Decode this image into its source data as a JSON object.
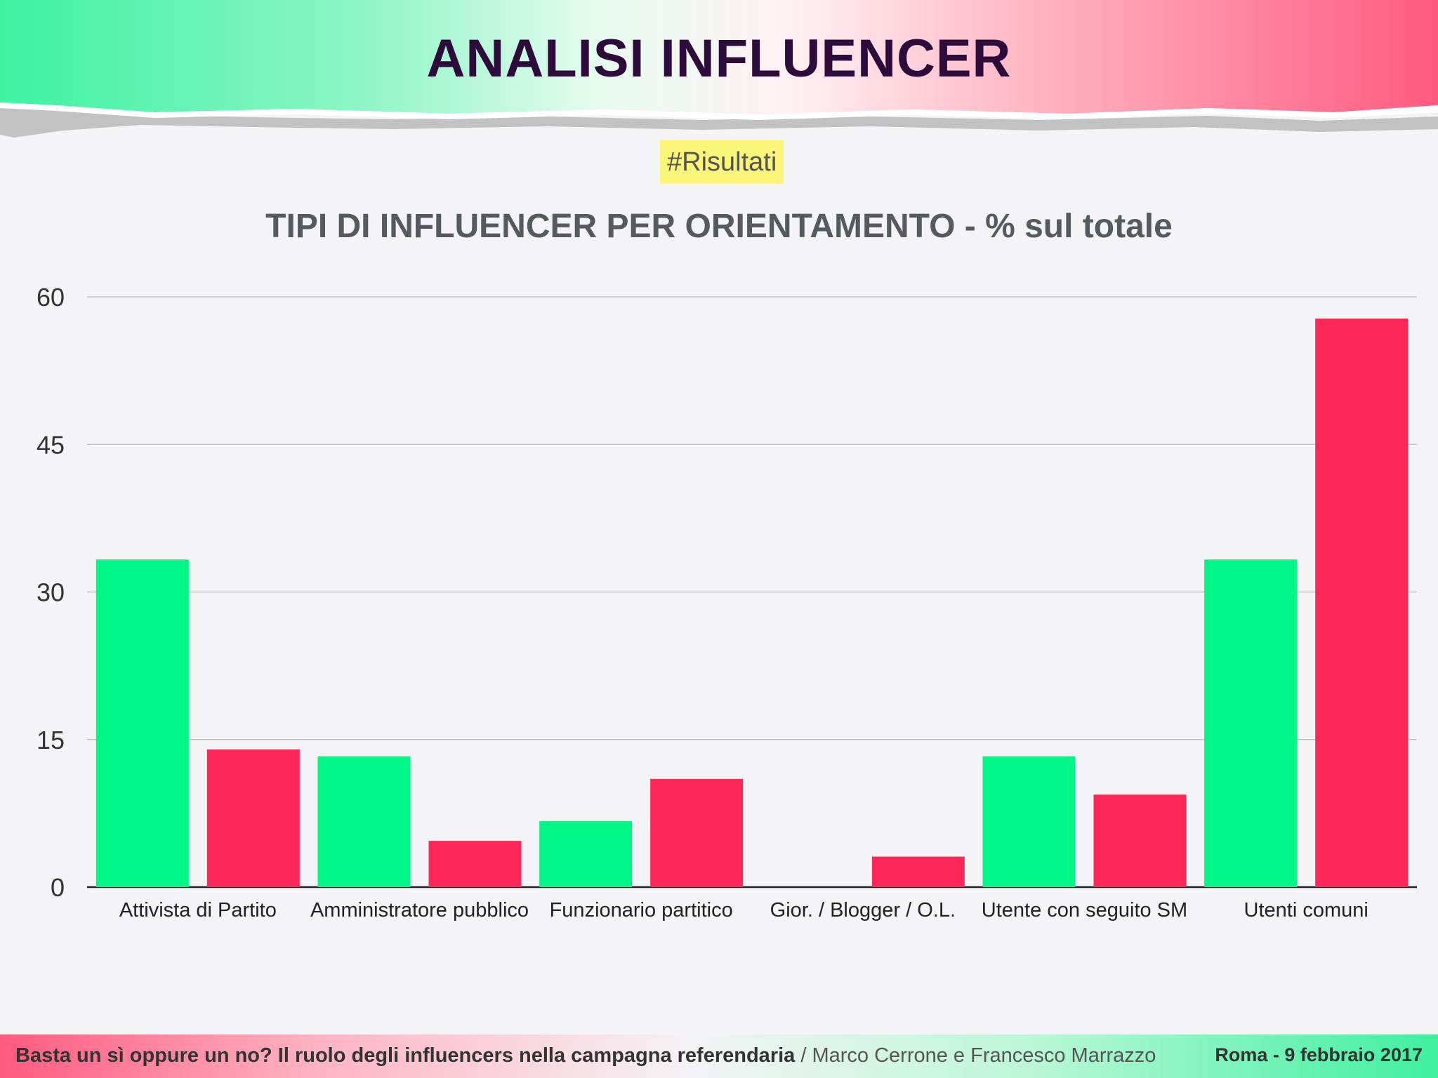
{
  "header": {
    "title": "ANALISI INFLUENCER"
  },
  "tag": "#Risultati",
  "colors": {
    "si": "#00f787",
    "no": "#ff2759",
    "header_left": "#3ef2a0",
    "header_right": "#ff5a7e"
  },
  "chart_data": {
    "type": "bar",
    "title": "TIPI DI INFLUENCER PER ORIENTAMENTO - % sul totale",
    "xlabel": "",
    "ylabel": "",
    "ylim": [
      0,
      60
    ],
    "yticks": [
      "60",
      "45",
      "30",
      "15",
      "0"
    ],
    "grid": true,
    "categories": [
      "Attivista di Partito",
      "Amministratore pubblico",
      "Funzionario partitico",
      "Gior. / Blogger / O.L.",
      "Utente con seguito SM",
      "Utenti comuni"
    ],
    "series": [
      {
        "color": "#00f787",
        "values": [
          33.3,
          13.3,
          6.7,
          0,
          13.3,
          33.3
        ]
      },
      {
        "color": "#ff2759",
        "values": [
          14,
          4.7,
          11,
          3.1,
          9.4,
          57.8
        ]
      }
    ]
  },
  "footer": {
    "title": "Basta un sì oppure un no? Il ruolo degli influencers nella campagna referendaria",
    "separator": " / ",
    "authors": "Marco Cerrone e Francesco Marrazzo",
    "place_date": "Roma - 9 febbraio 2017"
  }
}
